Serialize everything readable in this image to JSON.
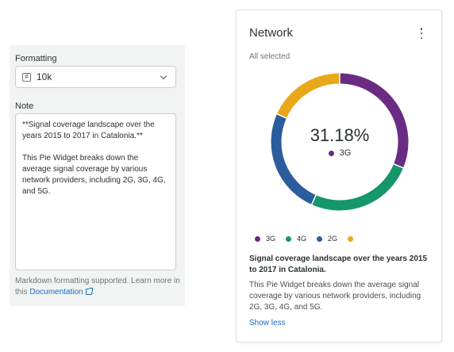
{
  "formatting": {
    "label": "Formatting",
    "select_icon": "hash-icon",
    "select_value": "10k"
  },
  "note": {
    "label": "Note",
    "value": "**Signal coverage landscape over the years 2015 to 2017 in Catalonia.**\n\nThis Pie Widget breaks down the average signal coverage by various network providers, including 2G, 3G, 4G, and 5G.",
    "helper_text": "Markdown formatting supported. Learn more in this ",
    "helper_link": "Documentation",
    "helper_end": "."
  },
  "widget": {
    "title": "Network",
    "subtitle": "All selected",
    "menu_icon": "kebab-menu-icon",
    "center_value": "31.18%",
    "center_label": "3G",
    "description_title": "Signal coverage landscape over the years 2015 to 2017 in Catalonia.",
    "description_body": "This Pie Widget breaks down the average signal coverage by various network providers, including 2G, 3G, 4G, and 5G.",
    "show_less": "Show less"
  },
  "chart_data": {
    "type": "pie",
    "categories": [
      "3G",
      "4G",
      "2G",
      ""
    ],
    "values": [
      31.18,
      25.5,
      25.0,
      18.32
    ],
    "colors": [
      "#6a2c82",
      "#16966b",
      "#2b5c9e",
      "#e9a81b"
    ],
    "legend_position": "bottom",
    "donut": true
  }
}
